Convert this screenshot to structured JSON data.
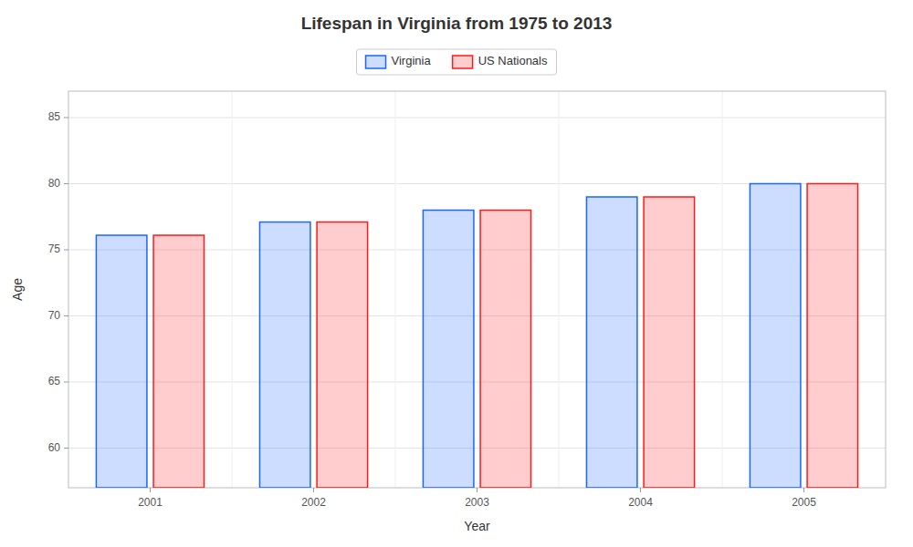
{
  "chart_data": {
    "type": "bar",
    "title": "Lifespan in Virginia from 1975 to 2013",
    "xlabel": "Year",
    "ylabel": "Age",
    "categories": [
      "2001",
      "2002",
      "2003",
      "2004",
      "2005"
    ],
    "series": [
      {
        "name": "Virginia",
        "color": "#1a66ff",
        "values": [
          76.1,
          77.1,
          78.0,
          79.0,
          80.0
        ]
      },
      {
        "name": "US Nationals",
        "color": "#ff1a1a",
        "values": [
          76.1,
          77.1,
          78.0,
          79.0,
          80.0
        ]
      }
    ],
    "ylim": [
      57,
      87
    ],
    "yticks": [
      60,
      65,
      70,
      75,
      80,
      85
    ],
    "grid": true,
    "legend": "top"
  }
}
